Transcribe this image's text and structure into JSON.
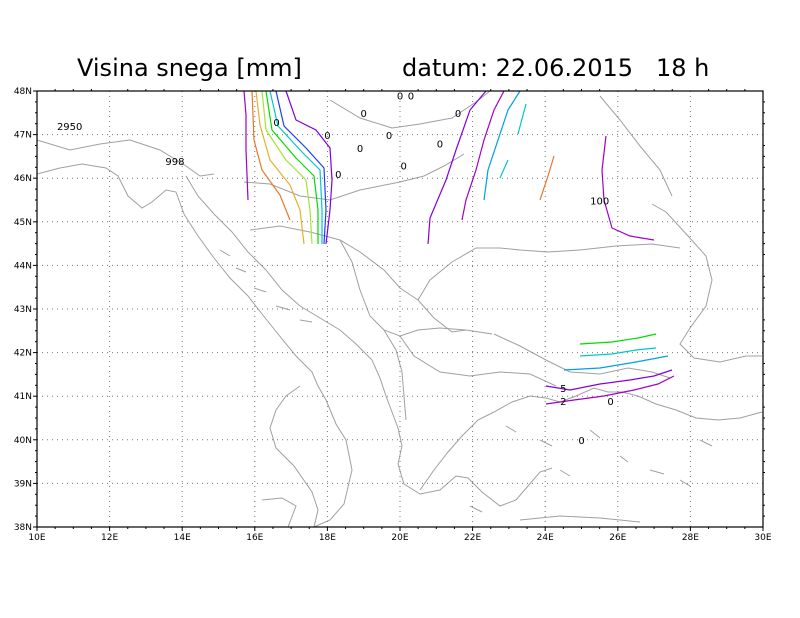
{
  "title": {
    "left": "Visina snega [mm]",
    "right": "datum: 22.06.2015   18 h"
  },
  "map": {
    "lon_range": [
      10,
      30
    ],
    "lat_range": [
      38,
      48
    ],
    "x_ticks": [
      "10E",
      "12E",
      "14E",
      "16E",
      "18E",
      "20E",
      "22E",
      "24E",
      "26E",
      "28E",
      "30E"
    ],
    "y_ticks": [
      "38N",
      "39N",
      "40N",
      "41N",
      "42N",
      "43N",
      "44N",
      "45N",
      "46N",
      "47N",
      "48N"
    ],
    "grid": "dotted",
    "contour_colors": [
      "#a000c8",
      "#8200dc",
      "#1e3cff",
      "#00a0e6",
      "#00c8c8",
      "#00dc00",
      "#a0e632",
      "#e6af2d",
      "#e6782d"
    ],
    "contour_labels": [
      {
        "text": "2950",
        "lon": 10.9,
        "lat": 47.1
      },
      {
        "text": "998",
        "lon": 13.8,
        "lat": 46.3
      },
      {
        "text": "0",
        "lon": 20.0,
        "lat": 47.8
      },
      {
        "text": "0",
        "lon": 20.3,
        "lat": 47.8
      },
      {
        "text": "0",
        "lon": 19.0,
        "lat": 47.4
      },
      {
        "text": "0",
        "lon": 21.6,
        "lat": 47.4
      },
      {
        "text": "0",
        "lon": 16.6,
        "lat": 47.2
      },
      {
        "text": "0",
        "lon": 18.0,
        "lat": 46.9
      },
      {
        "text": "0",
        "lon": 19.7,
        "lat": 46.9
      },
      {
        "text": "0",
        "lon": 18.9,
        "lat": 46.6
      },
      {
        "text": "0",
        "lon": 21.1,
        "lat": 46.7
      },
      {
        "text": "0",
        "lon": 20.1,
        "lat": 46.2
      },
      {
        "text": "0",
        "lon": 18.3,
        "lat": 46.0
      },
      {
        "text": "100",
        "lon": 25.5,
        "lat": 45.4
      },
      {
        "text": "5",
        "lon": 24.5,
        "lat": 41.1
      },
      {
        "text": "2",
        "lon": 24.5,
        "lat": 40.8
      },
      {
        "text": "0",
        "lon": 25.8,
        "lat": 40.8
      },
      {
        "text": "0",
        "lon": 25.0,
        "lat": 39.9
      }
    ]
  }
}
